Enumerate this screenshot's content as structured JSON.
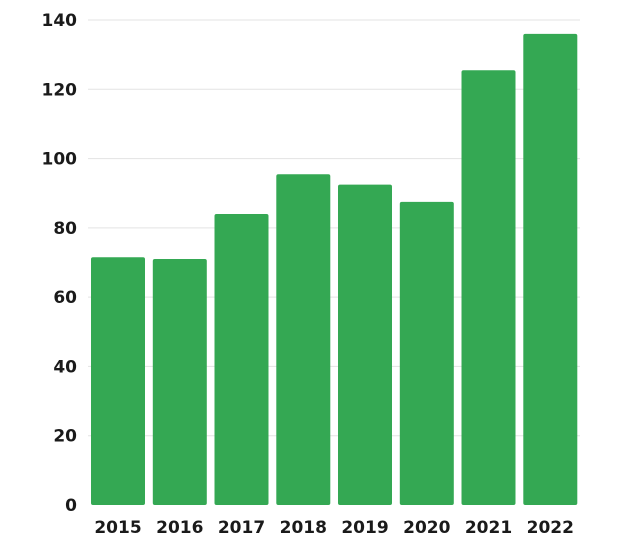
{
  "chart_data": {
    "type": "bar",
    "categories": [
      "2015",
      "2016",
      "2017",
      "2018",
      "2019",
      "2020",
      "2021",
      "2022"
    ],
    "values": [
      71.5,
      71,
      84,
      95.5,
      92.5,
      87.5,
      125.5,
      136
    ],
    "title": "",
    "xlabel": "",
    "ylabel": "",
    "ylim": [
      0,
      140
    ],
    "yticks": [
      0,
      20,
      40,
      60,
      80,
      100,
      120,
      140
    ],
    "grid": true,
    "legend": "none",
    "bar_color": "#34a853"
  }
}
